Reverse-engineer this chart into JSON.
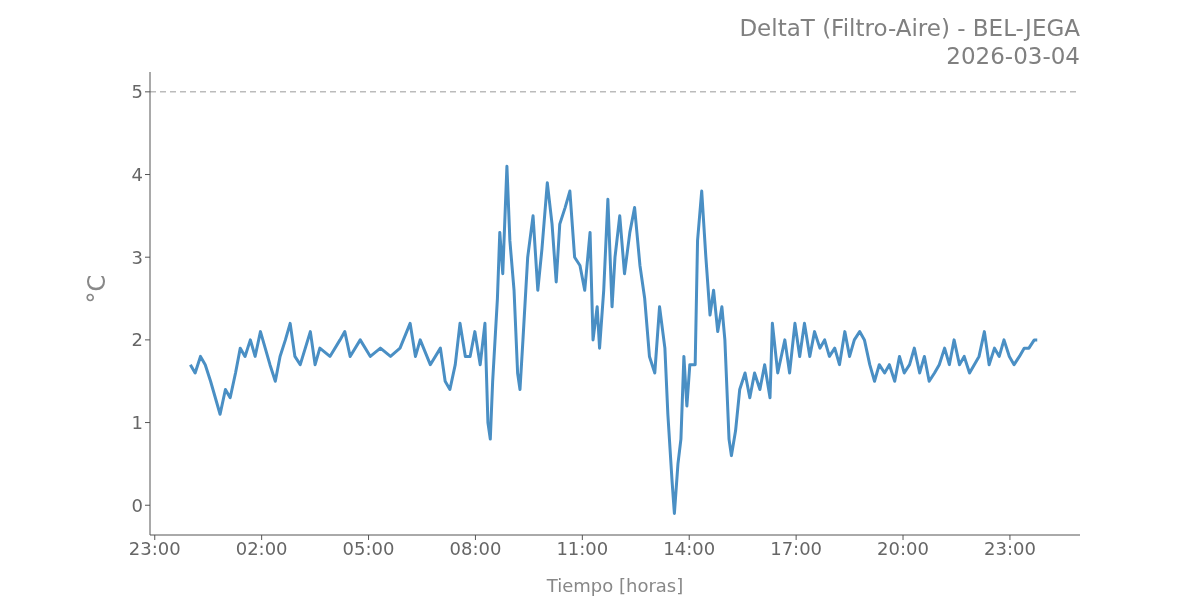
{
  "chart_data": {
    "type": "line",
    "title": "DeltaT (Filtro-Aire) - BEL-JEGA",
    "subtitle": "2026-03-04",
    "xlabel": "Tiempo [horas]",
    "ylabel": "°C",
    "xlim": [
      "2026-03-03T22:52",
      "2026-03-05T00:58"
    ],
    "ylim": [
      -0.36,
      5.24
    ],
    "xticks": [
      {
        "value": "2026-03-03T23:00",
        "label": "23:00"
      },
      {
        "value": "2026-03-04T02:00",
        "label": "02:00"
      },
      {
        "value": "2026-03-04T05:00",
        "label": "05:00"
      },
      {
        "value": "2026-03-04T08:00",
        "label": "08:00"
      },
      {
        "value": "2026-03-04T11:00",
        "label": "11:00"
      },
      {
        "value": "2026-03-04T14:00",
        "label": "14:00"
      },
      {
        "value": "2026-03-04T17:00",
        "label": "17:00"
      },
      {
        "value": "2026-03-04T20:00",
        "label": "20:00"
      },
      {
        "value": "2026-03-04T23:00",
        "label": "23:00"
      }
    ],
    "yticks": [
      0,
      1,
      2,
      3,
      4,
      5
    ],
    "ref_lines": [
      {
        "axis": "y",
        "value": 5,
        "color": "#bbbbbb",
        "line_style": "dashed"
      }
    ],
    "x": [
      "2026-03-04T00:00",
      "2026-03-04T00:08",
      "2026-03-04T00:17",
      "2026-03-04T00:25",
      "2026-03-04T00:34",
      "2026-03-04T00:42",
      "2026-03-04T00:50",
      "2026-03-04T00:59",
      "2026-03-04T01:07",
      "2026-03-04T01:16",
      "2026-03-04T01:24",
      "2026-03-04T01:32",
      "2026-03-04T01:41",
      "2026-03-04T01:49",
      "2026-03-04T01:58",
      "2026-03-04T02:06",
      "2026-03-04T02:14",
      "2026-03-04T02:23",
      "2026-03-04T02:31",
      "2026-03-04T02:40",
      "2026-03-04T02:48",
      "2026-03-04T02:56",
      "2026-03-04T03:05",
      "2026-03-04T03:22",
      "2026-03-04T03:30",
      "2026-03-04T03:38",
      "2026-03-04T03:55",
      "2026-03-04T04:12",
      "2026-03-04T04:20",
      "2026-03-04T04:29",
      "2026-03-04T04:46",
      "2026-03-04T05:03",
      "2026-03-04T05:20",
      "2026-03-04T05:37",
      "2026-03-04T05:53",
      "2026-03-04T06:10",
      "2026-03-04T06:19",
      "2026-03-04T06:27",
      "2026-03-04T06:44",
      "2026-03-04T07:01",
      "2026-03-04T07:09",
      "2026-03-04T07:17",
      "2026-03-04T07:26",
      "2026-03-04T07:34",
      "2026-03-04T07:43",
      "2026-03-04T07:51",
      "2026-03-04T07:59",
      "2026-03-04T08:08",
      "2026-03-04T08:16",
      "2026-03-04T08:21",
      "2026-03-04T08:25",
      "2026-03-04T08:29",
      "2026-03-04T08:37",
      "2026-03-04T08:41",
      "2026-03-04T08:46",
      "2026-03-04T08:53",
      "2026-03-04T08:58",
      "2026-03-04T09:05",
      "2026-03-04T09:11",
      "2026-03-04T09:15",
      "2026-03-04T09:20",
      "2026-03-04T09:28",
      "2026-03-04T09:37",
      "2026-03-04T09:45",
      "2026-03-04T09:52",
      "2026-03-04T10:01",
      "2026-03-04T10:09",
      "2026-03-04T10:16",
      "2026-03-04T10:22",
      "2026-03-04T10:31",
      "2026-03-04T10:39",
      "2026-03-04T10:47",
      "2026-03-04T10:56",
      "2026-03-04T11:04",
      "2026-03-04T11:13",
      "2026-03-04T11:18",
      "2026-03-04T11:25",
      "2026-03-04T11:29",
      "2026-03-04T11:36",
      "2026-03-04T11:43",
      "2026-03-04T11:50",
      "2026-03-04T11:55",
      "2026-03-04T12:03",
      "2026-03-04T12:11",
      "2026-03-04T12:20",
      "2026-03-04T12:28",
      "2026-03-04T12:37",
      "2026-03-04T12:45",
      "2026-03-04T12:53",
      "2026-03-04T13:02",
      "2026-03-04T13:10",
      "2026-03-04T13:19",
      "2026-03-04T13:24",
      "2026-03-04T13:31",
      "2026-03-04T13:35",
      "2026-03-04T13:41",
      "2026-03-04T13:46",
      "2026-03-04T13:51",
      "2026-03-04T13:56",
      "2026-03-04T14:01",
      "2026-03-04T14:10",
      "2026-03-04T14:14",
      "2026-03-04T14:21",
      "2026-03-04T14:28",
      "2026-03-04T14:35",
      "2026-03-04T14:41",
      "2026-03-04T14:48",
      "2026-03-04T14:55",
      "2026-03-04T15:00",
      "2026-03-04T15:07",
      "2026-03-04T15:11",
      "2026-03-04T15:18",
      "2026-03-04T15:25",
      "2026-03-04T15:34",
      "2026-03-04T15:42",
      "2026-03-04T15:50",
      "2026-03-04T15:59",
      "2026-03-04T16:07",
      "2026-03-04T16:16",
      "2026-03-04T16:20",
      "2026-03-04T16:29",
      "2026-03-04T16:41",
      "2026-03-04T16:49",
      "2026-03-04T16:58",
      "2026-03-04T17:06",
      "2026-03-04T17:14",
      "2026-03-04T17:23",
      "2026-03-04T17:31",
      "2026-03-04T17:40",
      "2026-03-04T17:48",
      "2026-03-04T17:56",
      "2026-03-04T18:05",
      "2026-03-04T18:13",
      "2026-03-04T18:22",
      "2026-03-04T18:30",
      "2026-03-04T18:38",
      "2026-03-04T18:47",
      "2026-03-04T18:55",
      "2026-03-04T19:04",
      "2026-03-04T19:12",
      "2026-03-04T19:20",
      "2026-03-04T19:29",
      "2026-03-04T19:37",
      "2026-03-04T19:46",
      "2026-03-04T19:54",
      "2026-03-04T20:02",
      "2026-03-04T20:11",
      "2026-03-04T20:19",
      "2026-03-04T20:28",
      "2026-03-04T20:36",
      "2026-03-04T20:44",
      "2026-03-04T20:53",
      "2026-03-04T21:01",
      "2026-03-04T21:10",
      "2026-03-04T21:18",
      "2026-03-04T21:26",
      "2026-03-04T21:35",
      "2026-03-04T21:43",
      "2026-03-04T21:52",
      "2026-03-04T22:00",
      "2026-03-04T22:08",
      "2026-03-04T22:17",
      "2026-03-04T22:25",
      "2026-03-04T22:34",
      "2026-03-04T22:42",
      "2026-03-04T22:50",
      "2026-03-04T22:59",
      "2026-03-04T23:07",
      "2026-03-04T23:16",
      "2026-03-04T23:24",
      "2026-03-04T23:32",
      "2026-03-04T23:41",
      "2026-03-04T23:46"
    ],
    "series": [
      {
        "color": "#4a8fc4",
        "values": [
          1.7,
          1.6,
          1.8,
          1.7,
          1.5,
          1.3,
          1.1,
          1.4,
          1.3,
          1.6,
          1.9,
          1.8,
          2.0,
          1.8,
          2.1,
          1.9,
          1.7,
          1.5,
          1.8,
          2.0,
          2.2,
          1.8,
          1.7,
          2.1,
          1.7,
          1.9,
          1.8,
          2.0,
          2.1,
          1.8,
          2.0,
          1.8,
          1.9,
          1.8,
          1.9,
          2.2,
          1.8,
          2.0,
          1.7,
          1.9,
          1.5,
          1.4,
          1.7,
          2.2,
          1.8,
          1.8,
          2.1,
          1.7,
          2.2,
          1.0,
          0.8,
          1.5,
          2.5,
          3.3,
          2.8,
          4.1,
          3.2,
          2.6,
          1.6,
          1.4,
          2.0,
          3.0,
          3.5,
          2.6,
          3.1,
          3.9,
          3.4,
          2.7,
          3.4,
          3.6,
          3.8,
          3.0,
          2.9,
          2.6,
          3.3,
          2.0,
          2.4,
          1.9,
          2.6,
          3.7,
          2.4,
          3.0,
          3.5,
          2.8,
          3.3,
          3.6,
          2.9,
          2.5,
          1.8,
          1.6,
          2.4,
          1.9,
          1.1,
          0.3,
          -0.1,
          0.5,
          0.8,
          1.8,
          1.2,
          1.7,
          1.7,
          3.2,
          3.8,
          3.0,
          2.3,
          2.6,
          2.1,
          2.4,
          2.0,
          0.8,
          0.6,
          0.9,
          1.4,
          1.6,
          1.3,
          1.6,
          1.4,
          1.7,
          1.3,
          2.2,
          1.6,
          2.0,
          1.6,
          2.2,
          1.8,
          2.2,
          1.8,
          2.1,
          1.9,
          2.0,
          1.8,
          1.9,
          1.7,
          2.1,
          1.8,
          2.0,
          2.1,
          2.0,
          1.7,
          1.5,
          1.7,
          1.6,
          1.7,
          1.5,
          1.8,
          1.6,
          1.7,
          1.9,
          1.6,
          1.8,
          1.5,
          1.6,
          1.7,
          1.9,
          1.7,
          2.0,
          1.7,
          1.8,
          1.6,
          1.7,
          1.8,
          2.1,
          1.7,
          1.9,
          1.8,
          2.0,
          1.8,
          1.7,
          1.8,
          1.9,
          1.9,
          2.0,
          2.0
        ]
      }
    ]
  }
}
